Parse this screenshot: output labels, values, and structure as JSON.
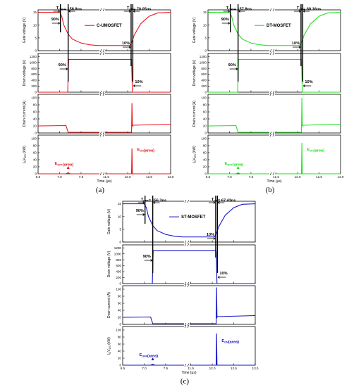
{
  "panels": [
    {
      "id": "a",
      "panel_label": "(a)",
      "color": "#e8141b",
      "legend": "C-UMOSFET",
      "toff_label": "= 158.8ns",
      "ton_label": "= 70.05ns",
      "pct_90_top": "90%",
      "pct_10_top": "10%",
      "pct_90_mid": "90%",
      "pct_10_mid": "10%",
      "eoff": "(area)",
      "eon": "(area)",
      "ylabels": [
        "Gate voltage (V)",
        "Drain voltage (V)",
        "Drain current (A)",
        "I V (kW)"
      ]
    },
    {
      "id": "b",
      "panel_label": "(b)",
      "color": "#1ee11e",
      "legend": "DT-MOSFET",
      "toff_label": "= 157.8ns",
      "ton_label": "= 68.16ns",
      "pct_90_top": "90%",
      "pct_10_top": "10%",
      "pct_90_mid": "90%",
      "pct_10_mid": "10%",
      "eoff": "(area)",
      "eon": "(area)",
      "ylabels": [
        "Gate voltage (V)",
        "Drain voltage (V)",
        "Drain current (A)",
        "I V (kW)"
      ]
    },
    {
      "id": "c",
      "panel_label": "(c)",
      "color": "#1414c8",
      "legend": "ST-MOSFET",
      "toff_label": "= 156.3ns",
      "ton_label": "= 67.43ns",
      "pct_90_top": "90%",
      "pct_10_top": "10%",
      "pct_90_mid": "90%",
      "pct_10_mid": "10%",
      "eoff": "(area)",
      "eon": "(area)",
      "ylabels": [
        "Gate voltage (V)",
        "Drain voltage (V)",
        "Drain current (A)",
        "I V (kW)"
      ]
    }
  ],
  "common": {
    "xlabel": "Time (μs)",
    "xticks": [
      "6.5",
      "7.0",
      "7.5",
      "11.5",
      "12.0",
      "12.5",
      "13.0"
    ],
    "t_off": "T",
    "t_off_sub": "OFF",
    "t_on": "T",
    "t_on_sub": "ON",
    "e_sym": "E",
    "e_off_sub": "OFF",
    "e_on_sub": "ON",
    "iv_sub1": "D",
    "iv_sub2": "DS",
    "gate_ticks": [
      "0",
      "5",
      "10",
      "15"
    ],
    "drain_v_ticks": [
      "0",
      "200",
      "400",
      "600",
      "800",
      "1000",
      "1200"
    ],
    "drain_i_ticks": [
      "0",
      "20",
      "40",
      "60",
      "80",
      "100"
    ],
    "power_ticks": [
      "0",
      "20",
      "40",
      "60",
      "80",
      "100"
    ]
  },
  "chart_data": [
    {
      "type": "line",
      "title": "",
      "panel": "(a) C-UMOSFET",
      "x_unit": "μs",
      "x_axis_break": [
        7.9,
        11.5
      ],
      "xlim": [
        6.5,
        13.0
      ],
      "t_off_ns": 158.8,
      "t_on_ns": 70.05,
      "subplots": [
        {
          "ylabel": "Gate voltage (V)",
          "ylim": [
            0,
            16
          ],
          "x": [
            6.5,
            7.0,
            7.05,
            7.1,
            7.2,
            7.3,
            7.5,
            7.7,
            7.9,
            11.5,
            12.05,
            12.1,
            12.15,
            12.3,
            12.5,
            12.7,
            13.0
          ],
          "y": [
            15,
            15,
            13.5,
            10,
            6.5,
            4.5,
            3,
            2.3,
            2,
            2,
            2,
            3.5,
            6,
            10.5,
            13.5,
            14.8,
            15
          ]
        },
        {
          "ylabel": "Drain voltage (V)",
          "ylim": [
            0,
            1300
          ],
          "x": [
            6.5,
            7.19,
            7.21,
            7.9,
            11.5,
            12.09,
            12.11,
            13.0
          ],
          "y": [
            0,
            0,
            1100,
            1100,
            1100,
            1100,
            0,
            0
          ]
        },
        {
          "ylabel": "Drain current (A)",
          "ylim": [
            0,
            110
          ],
          "x": [
            6.5,
            7.15,
            7.2,
            7.9,
            11.5,
            12.09,
            12.1,
            12.11,
            12.12,
            13.0
          ],
          "y": [
            20,
            21,
            2,
            2,
            2,
            2,
            85,
            20,
            22,
            25
          ]
        },
        {
          "ylabel": "I V (kW)",
          "ylim": [
            0,
            110
          ],
          "x": [
            6.5,
            7.15,
            7.2,
            7.25,
            7.9,
            11.5,
            12.09,
            12.1,
            12.11,
            13.0
          ],
          "y": [
            0,
            0,
            3,
            0,
            0,
            0,
            0,
            72,
            0,
            0
          ]
        }
      ]
    },
    {
      "type": "line",
      "title": "",
      "panel": "(b) DT-MOSFET",
      "x_unit": "μs",
      "x_axis_break": [
        7.9,
        11.5
      ],
      "xlim": [
        6.5,
        13.0
      ],
      "t_off_ns": 157.8,
      "t_on_ns": 68.16,
      "subplots": [
        {
          "ylabel": "Gate voltage (V)",
          "ylim": [
            0,
            16
          ],
          "x": [
            6.5,
            7.0,
            7.05,
            7.1,
            7.2,
            7.3,
            7.5,
            7.7,
            7.9,
            11.5,
            12.05,
            12.1,
            12.15,
            12.3,
            12.5,
            12.7,
            13.0
          ],
          "y": [
            15,
            15,
            13.5,
            10,
            6.5,
            4.5,
            3,
            2.3,
            2,
            2,
            2,
            3.5,
            6,
            10.5,
            13.5,
            14.8,
            15
          ]
        },
        {
          "ylabel": "Drain voltage (V)",
          "ylim": [
            0,
            1300
          ],
          "x": [
            6.5,
            7.19,
            7.21,
            7.9,
            11.5,
            12.09,
            12.11,
            13.0
          ],
          "y": [
            0,
            0,
            1100,
            1100,
            1100,
            1100,
            0,
            0
          ]
        },
        {
          "ylabel": "Drain current (A)",
          "ylim": [
            0,
            110
          ],
          "x": [
            6.5,
            7.15,
            7.2,
            7.9,
            11.5,
            12.09,
            12.1,
            12.11,
            12.12,
            13.0
          ],
          "y": [
            20,
            21,
            2,
            2,
            2,
            2,
            100,
            20,
            22,
            25
          ]
        },
        {
          "ylabel": "I V (kW)",
          "ylim": [
            0,
            110
          ],
          "x": [
            6.5,
            7.15,
            7.2,
            7.25,
            7.9,
            11.5,
            12.09,
            12.1,
            12.11,
            13.0
          ],
          "y": [
            0,
            0,
            3,
            0,
            0,
            0,
            0,
            88,
            0,
            0
          ]
        }
      ]
    },
    {
      "type": "line",
      "title": "",
      "panel": "(c) ST-MOSFET",
      "x_unit": "μs",
      "x_axis_break": [
        7.9,
        11.5
      ],
      "xlim": [
        6.5,
        13.0
      ],
      "t_off_ns": 156.3,
      "t_on_ns": 67.43,
      "subplots": [
        {
          "ylabel": "Gate voltage (V)",
          "ylim": [
            0,
            16
          ],
          "x": [
            6.5,
            7.0,
            7.05,
            7.1,
            7.2,
            7.3,
            7.5,
            7.7,
            7.9,
            11.5,
            12.05,
            12.1,
            12.15,
            12.3,
            12.5,
            12.7,
            13.0
          ],
          "y": [
            15,
            15,
            13.5,
            10,
            6.5,
            4.5,
            3,
            2.3,
            2,
            2,
            2,
            3.5,
            6,
            10.5,
            13.5,
            14.8,
            15
          ]
        },
        {
          "ylabel": "Drain voltage (V)",
          "ylim": [
            0,
            1300
          ],
          "x": [
            6.5,
            7.19,
            7.21,
            7.9,
            11.5,
            12.09,
            12.11,
            13.0
          ],
          "y": [
            0,
            0,
            1100,
            1100,
            1100,
            1100,
            0,
            0
          ]
        },
        {
          "ylabel": "Drain current (A)",
          "ylim": [
            0,
            110
          ],
          "x": [
            6.5,
            7.15,
            7.2,
            7.9,
            11.5,
            12.09,
            12.1,
            12.11,
            12.12,
            13.0
          ],
          "y": [
            20,
            21,
            2,
            2,
            2,
            2,
            105,
            20,
            22,
            25
          ]
        },
        {
          "ylabel": "I V (kW)",
          "ylim": [
            0,
            110
          ],
          "x": [
            6.5,
            7.15,
            7.2,
            7.25,
            7.9,
            11.5,
            12.09,
            12.1,
            12.11,
            13.0
          ],
          "y": [
            0,
            0,
            3,
            0,
            0,
            0,
            0,
            90,
            0,
            0
          ]
        }
      ]
    }
  ]
}
